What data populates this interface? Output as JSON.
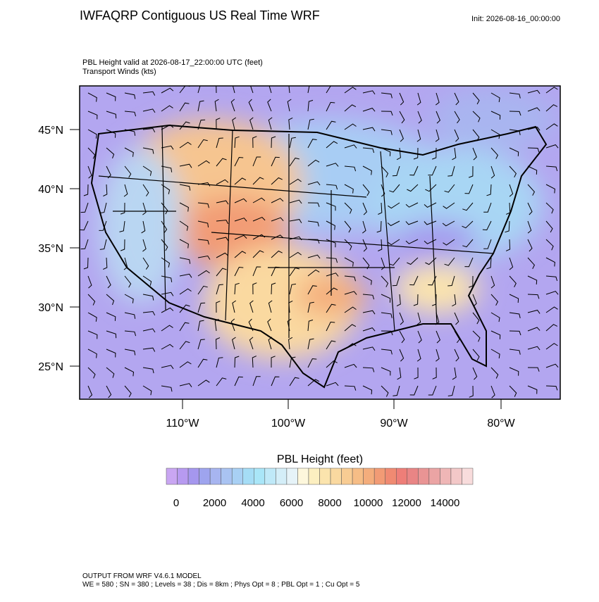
{
  "header": {
    "title": "IWFAQRP Contiguous US Real Time WRF",
    "init": "Init: 2026-08-16_00:00:00"
  },
  "subtitle": {
    "line1": "PBL Height valid at 2026-08-17_22:00:00 UTC   (feet)",
    "line2": "Transport Winds   (kts)"
  },
  "map": {
    "lat_labels": [
      "45°N",
      "40°N",
      "35°N",
      "30°N",
      "25°N"
    ],
    "lon_labels": [
      "110°W",
      "100°W",
      "90°W",
      "80°W"
    ]
  },
  "colorbar": {
    "title": "PBL Height  (feet)",
    "ticks": [
      0,
      2000,
      4000,
      6000,
      8000,
      10000,
      12000,
      14000
    ],
    "colors": [
      "#c9a6f2",
      "#b79af0",
      "#a597ee",
      "#9ea4ee",
      "#a7b5f0",
      "#a9c3f2",
      "#a8d0f4",
      "#a5ddf6",
      "#a9e6f8",
      "#bfe9f8",
      "#d4eef8",
      "#e6f3f8",
      "#fdf7dc",
      "#fcefc0",
      "#fbe4ad",
      "#fad9a0",
      "#f8cc93",
      "#f6bd86",
      "#f4ad7c",
      "#f29b75",
      "#f08a72",
      "#ee7e78",
      "#e98585",
      "#e99494",
      "#eba4a4",
      "#efb6b6",
      "#f3c8c8",
      "#f8dcdc"
    ]
  },
  "footer": {
    "line1": "OUTPUT FROM WRF V4.6.1 MODEL",
    "line2": "WE = 580 ; SN = 380 ; Levels = 38 ; Dis = 8km ; Phys Opt = 8 ; PBL Opt = 1 ; Cu Opt = 5"
  }
}
